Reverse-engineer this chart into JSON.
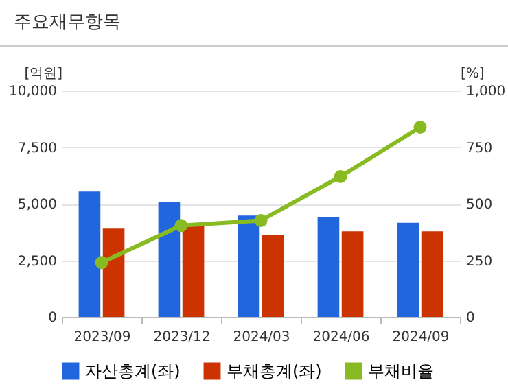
{
  "chart_data": {
    "type": "bar",
    "title": "주요재무항목",
    "ylabel": "[억원]",
    "y2label": "[%]",
    "categories": [
      "2023/09",
      "2023/12",
      "2024/03",
      "2024/06",
      "2024/09"
    ],
    "series": [
      {
        "name": "자산총계(좌)",
        "color": "#2266dd",
        "values": [
          5540,
          5080,
          4480,
          4420,
          4160
        ]
      },
      {
        "name": "부채총계(좌)",
        "color": "#cc3300",
        "values": [
          3900,
          4050,
          3640,
          3780,
          3780
        ]
      },
      {
        "name": "부채비율",
        "type": "line",
        "axis": "y2",
        "color": "#88bb22",
        "marker": "circle",
        "values": [
          240,
          404,
          426,
          620,
          838
        ]
      }
    ],
    "ylim": [
      0,
      10000
    ],
    "yticks": [
      0,
      {
        "value": 2500,
        "label": "2,500"
      },
      {
        "value": 5000,
        "label": "5,000"
      },
      {
        "value": 7500,
        "label": "7,500"
      },
      {
        "value": 10000,
        "label": "10,000"
      }
    ],
    "y2lim": [
      0,
      1000
    ],
    "y2ticks": [
      0,
      250,
      500,
      750,
      {
        "value": 1000,
        "label": "1,000"
      }
    ],
    "grid": "y",
    "legend": "bottom"
  }
}
